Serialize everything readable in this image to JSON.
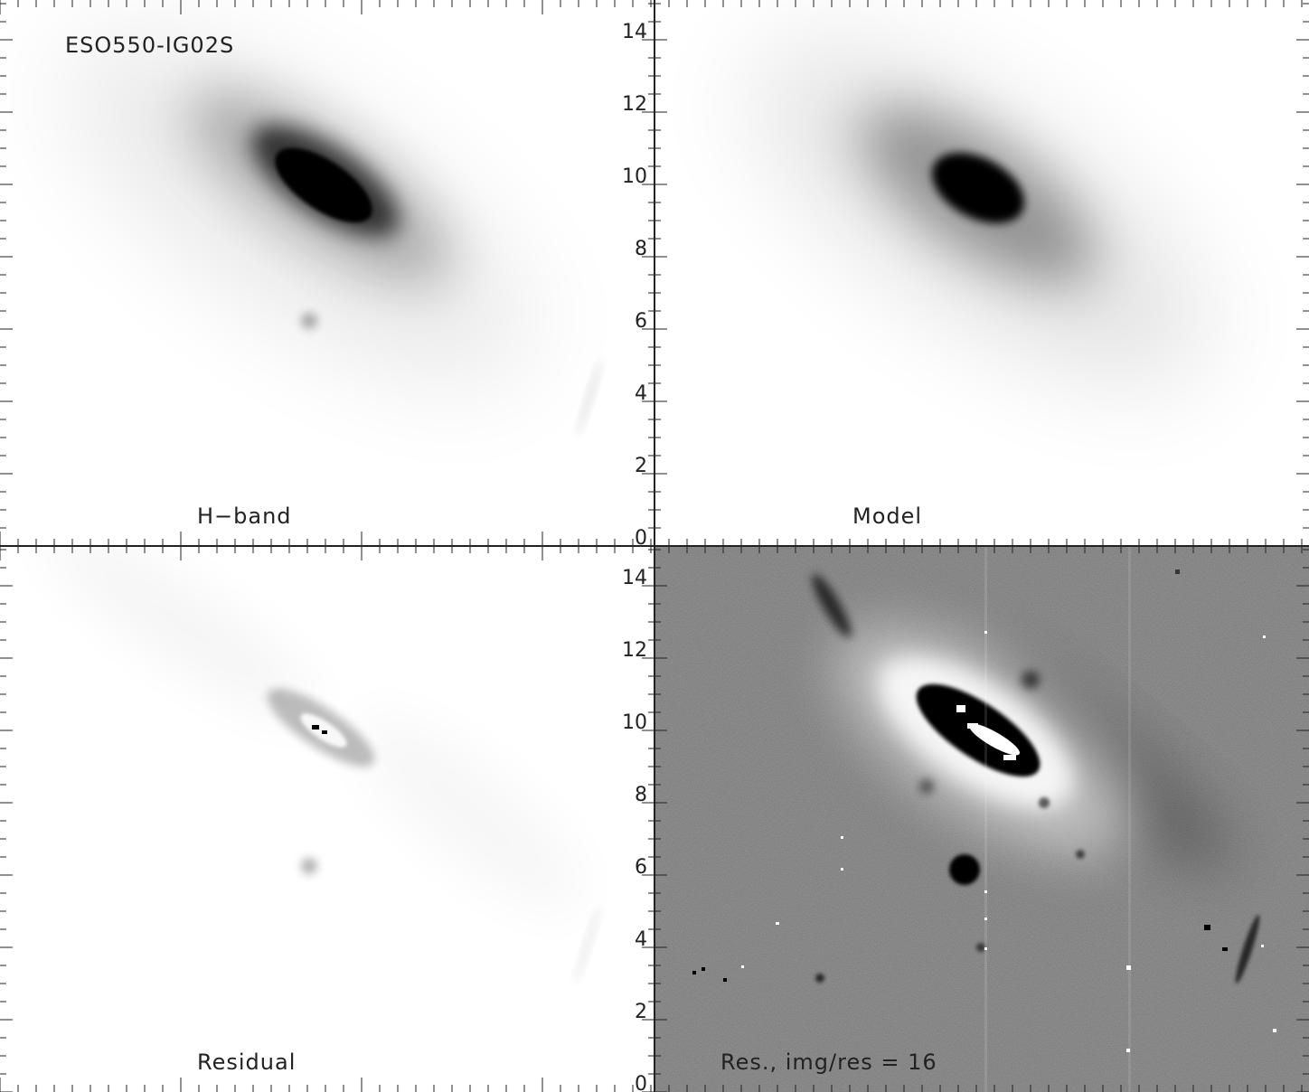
{
  "object_name": "ESO550-IG02S",
  "panels": [
    {
      "id": "hband",
      "label": "H−band"
    },
    {
      "id": "model",
      "label": "Model"
    },
    {
      "id": "residual",
      "label": "Residual"
    },
    {
      "id": "scaled_residual",
      "label": "Res., img/res = 16"
    }
  ],
  "y_axis_ticks": [
    "0",
    "2",
    "4",
    "6",
    "8",
    "10",
    "12",
    "14"
  ]
}
